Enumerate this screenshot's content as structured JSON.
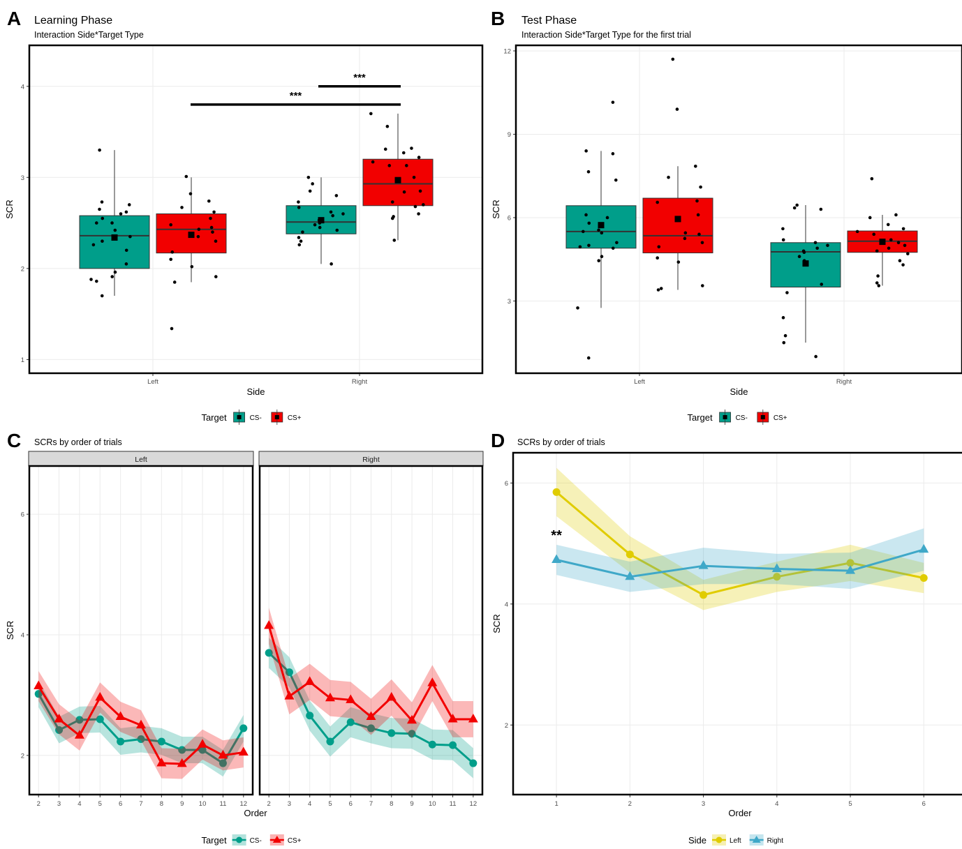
{
  "colors": {
    "cs_minus": "#009E8A",
    "cs_plus": "#F20000",
    "left": "#E0CC00",
    "right": "#3FA8C8",
    "grid": "#EBEBEB",
    "black": "#000000"
  },
  "chart_data": [
    {
      "panel": "A",
      "type": "boxplot",
      "title": "Learning Phase",
      "subtitle": "Interaction Side*Target Type",
      "xlabel": "Side",
      "ylabel": "SCR",
      "categories": [
        "Left",
        "Right"
      ],
      "ylim": [
        0.85,
        4.45
      ],
      "yticks": [
        1,
        2,
        3,
        4
      ],
      "legend": {
        "title": "Target",
        "position": "bottom",
        "entries": [
          "CS-",
          "CS+"
        ]
      },
      "series": [
        {
          "name": "CS-",
          "boxes": [
            {
              "category": "Left",
              "min": 1.7,
              "q1": 2.0,
              "median": 2.36,
              "q3": 2.58,
              "max": 3.3,
              "mean": 2.34,
              "points": [
                1.7,
                1.88,
                1.91,
                1.96,
                2.2,
                2.26,
                2.3,
                2.35,
                2.42,
                2.5,
                2.5,
                2.55,
                2.6,
                2.65,
                2.7,
                2.73,
                2.62,
                3.3,
                2.05,
                1.86
              ]
            },
            {
              "category": "Right",
              "min": 2.05,
              "q1": 2.38,
              "median": 2.51,
              "q3": 2.69,
              "max": 3.0,
              "mean": 2.53,
              "points": [
                2.05,
                2.26,
                2.3,
                2.34,
                2.4,
                2.42,
                2.45,
                2.48,
                2.5,
                2.53,
                2.58,
                2.6,
                2.62,
                2.67,
                2.73,
                2.8,
                2.85,
                2.93,
                3.0
              ]
            }
          ]
        },
        {
          "name": "CS+",
          "boxes": [
            {
              "category": "Left",
              "min": 1.85,
              "q1": 2.17,
              "median": 2.43,
              "q3": 2.6,
              "max": 3.0,
              "mean": 2.37,
              "points": [
                1.34,
                1.85,
                1.91,
                2.02,
                2.1,
                2.18,
                2.3,
                2.35,
                2.4,
                2.43,
                2.45,
                2.48,
                2.55,
                2.62,
                2.67,
                2.74,
                2.82,
                3.01
              ]
            },
            {
              "category": "Right",
              "min": 2.31,
              "q1": 2.69,
              "median": 2.93,
              "q3": 3.2,
              "max": 3.7,
              "mean": 2.97,
              "points": [
                2.31,
                2.55,
                2.57,
                2.6,
                2.68,
                2.7,
                2.73,
                2.84,
                2.85,
                3.0,
                3.13,
                3.13,
                3.17,
                3.22,
                3.27,
                3.31,
                3.32,
                3.56,
                3.7
              ]
            }
          ]
        }
      ],
      "annotations": [
        {
          "text": "***",
          "from": "Left CS+",
          "to": "Right CS+",
          "y": 3.8
        },
        {
          "text": "***",
          "from": "Right CS-",
          "to": "Right CS+",
          "y": 4.0
        }
      ]
    },
    {
      "panel": "B",
      "type": "boxplot",
      "title": "Test Phase",
      "subtitle": "Interaction Side*Target Type for the first trial",
      "xlabel": "Side",
      "ylabel": "SCR",
      "categories": [
        "Left",
        "Right"
      ],
      "ylim": [
        0.4,
        12.2
      ],
      "yticks": [
        3,
        6,
        9,
        12
      ],
      "legend": {
        "title": "Target",
        "position": "bottom",
        "entries": [
          "CS-",
          "CS+"
        ]
      },
      "series": [
        {
          "name": "CS-",
          "boxes": [
            {
              "category": "Left",
              "min": 2.75,
              "q1": 4.9,
              "median": 5.5,
              "q3": 6.43,
              "max": 8.4,
              "mean": 5.73,
              "points": [
                0.95,
                2.75,
                4.45,
                4.6,
                4.9,
                4.95,
                5.0,
                5.1,
                5.45,
                5.5,
                5.55,
                5.8,
                6.0,
                6.1,
                7.35,
                7.65,
                8.3,
                8.4,
                10.15
              ]
            },
            {
              "category": "Right",
              "min": 1.5,
              "q1": 3.5,
              "median": 4.77,
              "q3": 5.1,
              "max": 6.45,
              "mean": 4.35,
              "points": [
                1.0,
                1.5,
                1.75,
                2.4,
                3.3,
                3.6,
                4.45,
                4.6,
                4.75,
                4.8,
                4.9,
                5.0,
                5.1,
                5.2,
                5.6,
                6.3,
                6.35,
                6.45
              ]
            }
          ]
        },
        {
          "name": "CS+",
          "boxes": [
            {
              "category": "Left",
              "min": 3.4,
              "q1": 4.73,
              "median": 5.35,
              "q3": 6.7,
              "max": 7.85,
              "mean": 5.95,
              "points": [
                3.4,
                3.45,
                3.55,
                4.4,
                4.55,
                4.95,
                5.1,
                5.25,
                5.4,
                5.45,
                6.1,
                6.55,
                6.6,
                7.1,
                7.45,
                7.85,
                9.9,
                11.7
              ]
            },
            {
              "category": "Right",
              "min": 3.55,
              "q1": 4.75,
              "median": 5.15,
              "q3": 5.52,
              "max": 6.1,
              "mean": 5.13,
              "points": [
                3.55,
                3.65,
                3.9,
                4.3,
                4.45,
                4.7,
                4.8,
                4.9,
                5.0,
                5.1,
                5.2,
                5.4,
                5.5,
                5.6,
                5.75,
                6.0,
                6.1,
                7.4
              ]
            }
          ]
        }
      ]
    },
    {
      "panel": "C",
      "type": "line",
      "title": "SCRs by order of trials",
      "xlabel": "Order",
      "ylabel": "SCR",
      "facets": [
        "Left",
        "Right"
      ],
      "x": [
        2,
        3,
        4,
        5,
        6,
        7,
        8,
        9,
        10,
        11,
        12
      ],
      "ylim": [
        1.35,
        6.8
      ],
      "yticks": [
        2,
        4,
        6
      ],
      "legend": {
        "title": "Target",
        "position": "bottom",
        "entries": [
          "CS-",
          "CS+"
        ]
      },
      "series": [
        {
          "facet": "Left",
          "name": "CS-",
          "values": [
            3.02,
            2.42,
            2.59,
            2.6,
            2.23,
            2.27,
            2.23,
            2.09,
            2.09,
            1.87,
            2.45
          ],
          "band": 0.22
        },
        {
          "facet": "Left",
          "name": "CS+",
          "values": [
            3.15,
            2.6,
            2.33,
            2.96,
            2.64,
            2.5,
            1.87,
            1.86,
            2.18,
            2.0,
            2.05
          ],
          "band": 0.25
        },
        {
          "facet": "Right",
          "name": "CS-",
          "values": [
            3.7,
            3.38,
            2.66,
            2.23,
            2.55,
            2.45,
            2.37,
            2.36,
            2.18,
            2.17,
            1.87
          ],
          "band": 0.25
        },
        {
          "facet": "Right",
          "name": "CS+",
          "values": [
            4.15,
            2.98,
            3.22,
            2.95,
            2.92,
            2.64,
            2.96,
            2.58,
            3.2,
            2.6,
            2.6
          ],
          "band": 0.3
        }
      ]
    },
    {
      "panel": "D",
      "type": "line",
      "title": "SCRs by order of trials",
      "xlabel": "Order",
      "ylabel": "SCR",
      "x": [
        1,
        2,
        3,
        4,
        5,
        6
      ],
      "ylim": [
        0.85,
        6.5
      ],
      "yticks": [
        2,
        4,
        6
      ],
      "legend": {
        "title": "Side",
        "position": "bottom",
        "entries": [
          "Left",
          "Right"
        ]
      },
      "series": [
        {
          "name": "Left",
          "values": [
            5.85,
            4.82,
            4.15,
            4.45,
            4.68,
            4.43
          ],
          "band": [
            0.4,
            0.3,
            0.25,
            0.25,
            0.3,
            0.25
          ]
        },
        {
          "name": "Right",
          "values": [
            4.73,
            4.45,
            4.63,
            4.58,
            4.55,
            4.9
          ],
          "band": [
            0.25,
            0.25,
            0.3,
            0.25,
            0.3,
            0.35
          ]
        }
      ],
      "annotations": [
        {
          "text": "**",
          "x": 1,
          "y": 5.15
        }
      ]
    }
  ],
  "panel_letters": [
    "A",
    "B",
    "C",
    "D"
  ]
}
